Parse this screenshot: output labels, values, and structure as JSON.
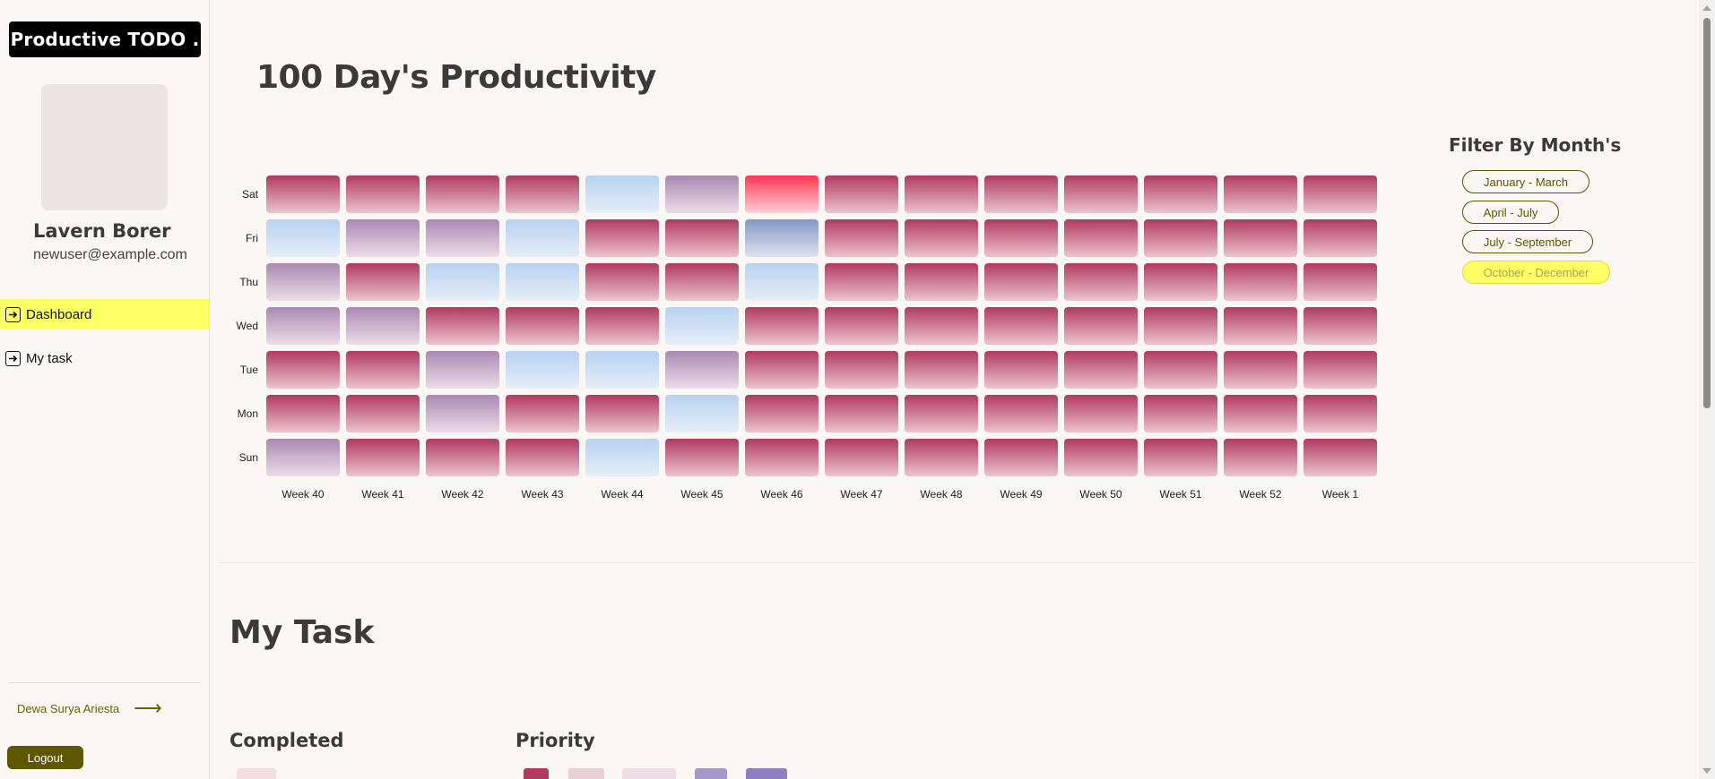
{
  "brand": "Productive TODO .",
  "user": {
    "name": "Lavern Borer",
    "email": "newuser@example.com"
  },
  "nav": [
    {
      "label": "Dashboard",
      "icon": "arrow-right-box-icon",
      "active": true
    },
    {
      "label": "My task",
      "icon": "arrow-right-box-icon",
      "active": false
    }
  ],
  "footer": {
    "author": "Dewa Surya Ariesta",
    "author_icon": "long-arrow-right-icon",
    "logout": "Logout"
  },
  "heatmap": {
    "title": "100 Day's Productivity",
    "days": [
      "Sat",
      "Fri",
      "Thu",
      "Wed",
      "Tue",
      "Mon",
      "Sun"
    ],
    "weeks": [
      "Week 40",
      "Week 41",
      "Week 42",
      "Week 43",
      "Week 44",
      "Week 45",
      "Week 46",
      "Week 47",
      "Week 48",
      "Week 49",
      "Week 50",
      "Week 51",
      "Week 52",
      "Week 1"
    ],
    "levels": [
      [
        "high",
        "high",
        "high",
        "high",
        "low",
        "mid",
        "peak",
        "high",
        "high",
        "high",
        "high",
        "high",
        "high",
        "high"
      ],
      [
        "low",
        "mid",
        "mid",
        "low",
        "high",
        "high",
        "blue",
        "high",
        "high",
        "high",
        "high",
        "high",
        "high",
        "high"
      ],
      [
        "mid",
        "high",
        "low",
        "low",
        "high",
        "high",
        "low",
        "high",
        "high",
        "high",
        "high",
        "high",
        "high",
        "high"
      ],
      [
        "mid",
        "mid",
        "high",
        "high",
        "high",
        "low",
        "high",
        "high",
        "high",
        "high",
        "high",
        "high",
        "high",
        "high"
      ],
      [
        "high",
        "high",
        "mid",
        "low",
        "low",
        "mid",
        "high",
        "high",
        "high",
        "high",
        "high",
        "high",
        "high",
        "high"
      ],
      [
        "high",
        "high",
        "mid",
        "high",
        "high",
        "low",
        "high",
        "high",
        "high",
        "high",
        "high",
        "high",
        "high",
        "high"
      ],
      [
        "mid",
        "high",
        "high",
        "high",
        "low",
        "high",
        "high",
        "high",
        "high",
        "high",
        "high",
        "high",
        "high",
        "high"
      ]
    ],
    "colors": {
      "high": [
        "#b03a62",
        "#ecc4cf"
      ],
      "mid": [
        "#a989b2",
        "#ecdde8"
      ],
      "low": [
        "#b7d2f1",
        "#e6eef8"
      ],
      "blue": [
        "#8497c5",
        "#dde2f0"
      ],
      "peak": [
        "#ff3553",
        "#ffd1d8"
      ]
    }
  },
  "filter": {
    "title": "Filter By Month's",
    "options": [
      {
        "label": "January - March",
        "active": false
      },
      {
        "label": "April - July",
        "active": false
      },
      {
        "label": "July - September",
        "active": false
      },
      {
        "label": "October - December",
        "active": true
      }
    ]
  },
  "my_task": {
    "title": "My Task",
    "completed": "Completed",
    "priority": "Priority"
  }
}
